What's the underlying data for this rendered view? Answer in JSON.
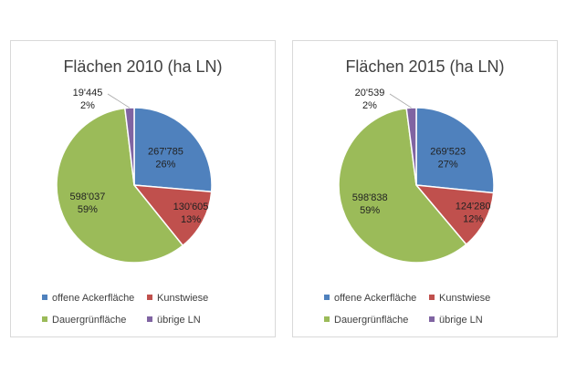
{
  "chart_data": [
    {
      "type": "pie",
      "title": "Flächen 2010 (ha LN)",
      "categories": [
        "offene Ackerfläche",
        "Kunstwiese",
        "Dauergrünfläche",
        "übrige LN"
      ],
      "values": [
        267785,
        130605,
        598037,
        19445
      ],
      "value_labels": [
        "267'785",
        "130'605",
        "598'037",
        "19'445"
      ],
      "percent_labels": [
        "26%",
        "13%",
        "59%",
        "2%"
      ],
      "colors": [
        "#4f81bd",
        "#c0504d",
        "#9bbb59",
        "#8064a2"
      ],
      "legend_position": "bottom"
    },
    {
      "type": "pie",
      "title": "Flächen 2015 (ha LN)",
      "categories": [
        "offene Ackerfläche",
        "Kunstwiese",
        "Dauergrünfläche",
        "übrige LN"
      ],
      "values": [
        269523,
        124280,
        598838,
        20539
      ],
      "value_labels": [
        "269'523",
        "124'280",
        "598'838",
        "20'539"
      ],
      "percent_labels": [
        "27%",
        "12%",
        "59%",
        "2%"
      ],
      "colors": [
        "#4f81bd",
        "#c0504d",
        "#9bbb59",
        "#8064a2"
      ],
      "legend_position": "bottom"
    }
  ]
}
